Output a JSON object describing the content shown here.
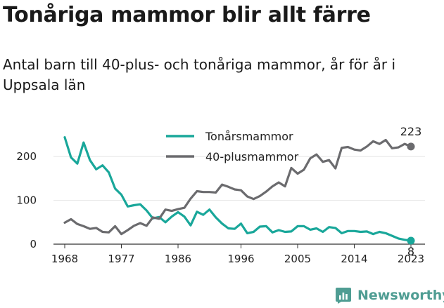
{
  "title": "Tonåriga mammor blir allt färre",
  "subtitle": "Antal barn till 40-plus- och tonåriga mammor, år för år i Uppsala län",
  "brand": {
    "name": "Newsworthy",
    "color": "#4f9d93",
    "icon": "newsworthy-logo-icon"
  },
  "colors": {
    "teen": "#19a79a",
    "forty": "#6b6b6e"
  },
  "chart_data": {
    "type": "line",
    "title": "Tonåriga mammor blir allt färre",
    "subtitle": "Antal barn till 40-plus- och tonåriga mammor, år för år i Uppsala län",
    "xlabel": "",
    "ylabel": "",
    "xlim": [
      1968,
      2023
    ],
    "ylim": [
      0,
      250
    ],
    "x_ticks": [
      1968,
      1977,
      1986,
      1996,
      2005,
      2014,
      2023
    ],
    "y_ticks": [
      0,
      100,
      200
    ],
    "grid": "horizontal",
    "legend": "top-center",
    "x": [
      1968,
      1969,
      1970,
      1971,
      1972,
      1973,
      1974,
      1975,
      1976,
      1977,
      1978,
      1979,
      1980,
      1981,
      1982,
      1983,
      1984,
      1985,
      1986,
      1987,
      1988,
      1989,
      1990,
      1991,
      1992,
      1993,
      1994,
      1995,
      1996,
      1997,
      1998,
      1999,
      2000,
      2001,
      2002,
      2003,
      2004,
      2005,
      2006,
      2007,
      2008,
      2009,
      2010,
      2011,
      2012,
      2013,
      2014,
      2015,
      2016,
      2017,
      2018,
      2019,
      2020,
      2021,
      2022,
      2023
    ],
    "series": [
      {
        "name": "Tonårsmammor",
        "color": "#19a79a",
        "values": [
          244,
          198,
          184,
          232,
          192,
          171,
          180,
          164,
          127,
          113,
          86,
          89,
          91,
          77,
          59,
          62,
          50,
          63,
          73,
          63,
          43,
          74,
          67,
          79,
          61,
          47,
          36,
          35,
          47,
          25,
          28,
          40,
          41,
          27,
          32,
          28,
          29,
          41,
          41,
          33,
          36,
          28,
          39,
          37,
          25,
          30,
          30,
          28,
          29,
          23,
          28,
          25,
          19,
          13,
          10,
          8
        ],
        "end_label": "8"
      },
      {
        "name": "40-plusmammor",
        "color": "#6b6b6e",
        "values": [
          49,
          57,
          46,
          41,
          35,
          37,
          28,
          27,
          41,
          23,
          32,
          42,
          48,
          42,
          61,
          58,
          79,
          76,
          80,
          83,
          104,
          121,
          119,
          119,
          118,
          136,
          131,
          125,
          123,
          109,
          103,
          110,
          120,
          132,
          141,
          132,
          174,
          161,
          170,
          196,
          205,
          188,
          192,
          173,
          220,
          222,
          216,
          214,
          223,
          235,
          229,
          238,
          219,
          221,
          229,
          223
        ],
        "end_label": "223"
      }
    ]
  }
}
